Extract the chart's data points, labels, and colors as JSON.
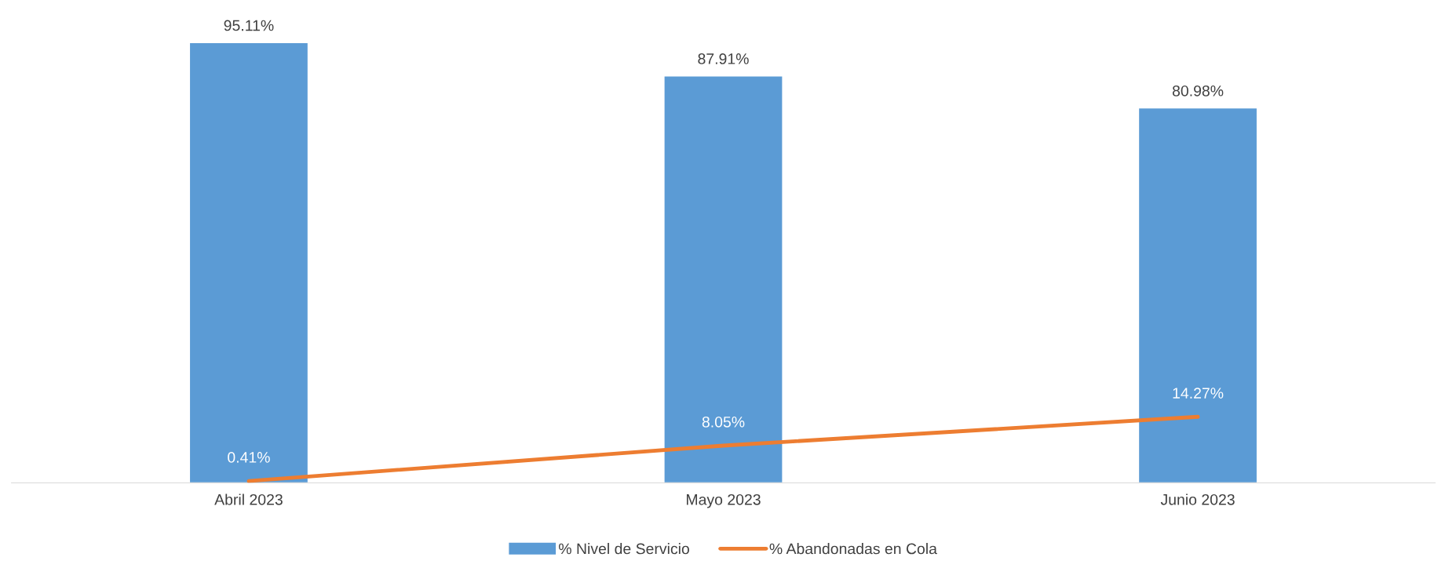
{
  "chart_data": {
    "type": "bar",
    "categories": [
      "Abril 2023",
      "Mayo 2023",
      "Junio 2023"
    ],
    "legend": "bottom",
    "grid": false,
    "series": [
      {
        "name": "% Nivel de Servicio",
        "color": "#5b9bd5",
        "values": [
          95.11,
          87.91,
          80.98
        ],
        "value_labels": [
          "95.11%",
          "87.91%",
          "80.98%"
        ]
      },
      {
        "name": "% Abandonadas en Cola",
        "type": "line",
        "color": "#ed7d31",
        "values": [
          0.41,
          8.05,
          14.27
        ],
        "value_labels": [
          "0.41%",
          "8.05%",
          "14.27%"
        ]
      }
    ]
  }
}
